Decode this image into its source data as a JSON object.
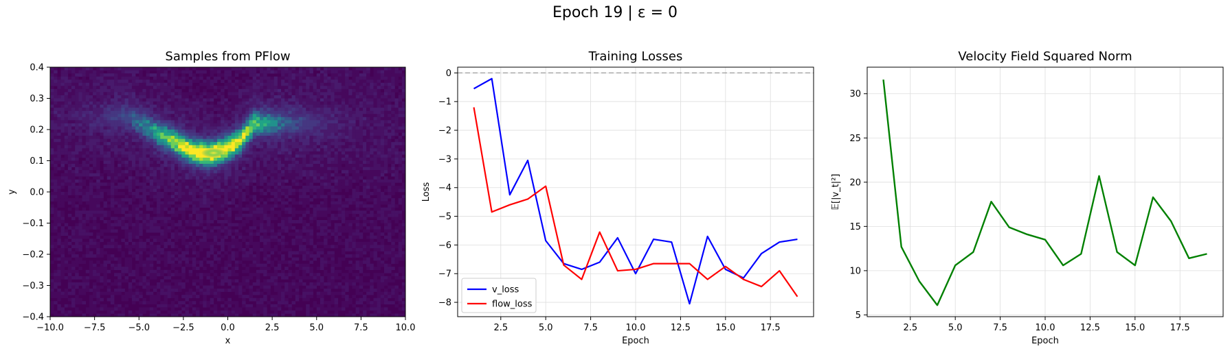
{
  "figure": {
    "suptitle": "Epoch 19 | ε = 0"
  },
  "colors": {
    "v_loss": "#0000ff",
    "flow_loss": "#ff0000",
    "velocity": "#008000",
    "zero_line": "#999999",
    "grid": "#dddddd"
  },
  "chart_data": [
    {
      "type": "heatmap",
      "title": "Samples from PFlow",
      "xlabel": "x",
      "ylabel": "y",
      "xlim": [
        -10,
        10
      ],
      "ylim": [
        -0.4,
        0.4
      ],
      "xticks": [
        "−10.0",
        "−7.5",
        "−5.0",
        "−2.5",
        "0.0",
        "2.5",
        "5.0",
        "7.5",
        "10.0"
      ],
      "yticks": [
        "−0.4",
        "−0.3",
        "−0.2",
        "−0.1",
        "0.0",
        "0.1",
        "0.2",
        "0.3",
        "0.4"
      ],
      "colormap": "viridis",
      "density_ridge": {
        "description": "curved band of high density",
        "x": [
          -5.5,
          -4.0,
          -3.0,
          -2.0,
          -1.0,
          0.0,
          0.8,
          1.5
        ],
        "y": [
          0.24,
          0.19,
          0.16,
          0.13,
          0.12,
          0.14,
          0.17,
          0.22
        ]
      },
      "peak": {
        "x": -0.8,
        "y": 0.125
      },
      "grid": false
    },
    {
      "type": "line",
      "title": "Training Losses",
      "xlabel": "Epoch",
      "ylabel": "Loss",
      "xlim": [
        0.1,
        19.9
      ],
      "ylim": [
        -8.5,
        0.2
      ],
      "xticks": [
        "2.5",
        "5.0",
        "7.5",
        "10.0",
        "12.5",
        "15.0",
        "17.5"
      ],
      "yticks": [
        "−8",
        "−7",
        "−6",
        "−5",
        "−4",
        "−3",
        "−2",
        "−1",
        "0"
      ],
      "hline": 0,
      "grid": true,
      "legend": "lower-left",
      "x": [
        1,
        2,
        3,
        4,
        5,
        6,
        7,
        8,
        9,
        10,
        11,
        12,
        13,
        14,
        15,
        16,
        17,
        18,
        19
      ],
      "series": [
        {
          "name": "v_loss",
          "values": [
            -0.55,
            -0.2,
            -4.25,
            -3.05,
            -5.85,
            -6.65,
            -6.85,
            -6.6,
            -5.75,
            -7.0,
            -5.8,
            -5.9,
            -8.05,
            -5.7,
            -6.85,
            -7.15,
            -6.3,
            -5.9,
            -5.8
          ]
        },
        {
          "name": "flow_loss",
          "values": [
            -1.2,
            -4.85,
            -4.6,
            -4.4,
            -3.95,
            -6.7,
            -7.2,
            -5.55,
            -6.9,
            -6.85,
            -6.65,
            -6.65,
            -6.65,
            -7.2,
            -6.75,
            -7.2,
            -7.45,
            -6.9,
            -7.8
          ]
        }
      ]
    },
    {
      "type": "line",
      "title": "Velocity Field Squared Norm",
      "xlabel": "Epoch",
      "ylabel": "𝔼[|v_t|²]",
      "xlim": [
        0.1,
        19.9
      ],
      "ylim": [
        4.8,
        33
      ],
      "xticks": [
        "2.5",
        "5.0",
        "7.5",
        "10.0",
        "12.5",
        "15.0",
        "17.5"
      ],
      "yticks": [
        "5",
        "10",
        "15",
        "20",
        "25",
        "30"
      ],
      "grid": true,
      "x": [
        1,
        2,
        3,
        4,
        5,
        6,
        7,
        8,
        9,
        10,
        11,
        12,
        13,
        14,
        15,
        16,
        17,
        18,
        19
      ],
      "series": [
        {
          "values": [
            31.6,
            12.7,
            8.8,
            6.1,
            10.6,
            12.1,
            17.8,
            14.9,
            14.1,
            13.5,
            10.6,
            11.9,
            20.7,
            12.1,
            10.6,
            18.3,
            15.6,
            11.4,
            11.9
          ]
        }
      ]
    }
  ]
}
